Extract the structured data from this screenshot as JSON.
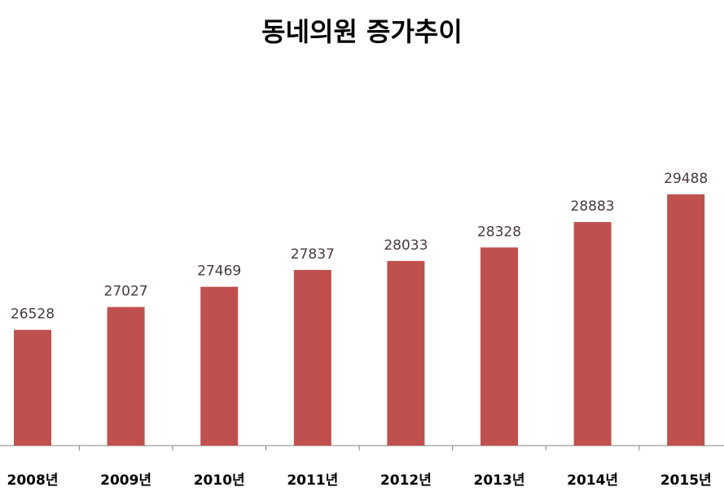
{
  "chart_data": {
    "type": "bar",
    "title": "동네의원 증가추이",
    "categories": [
      "2008년",
      "2009년",
      "2010년",
      "2011년",
      "2012년",
      "2013년",
      "2014년",
      "2015년"
    ],
    "values": [
      26528,
      27027,
      27469,
      27837,
      28033,
      28328,
      28883,
      29488
    ],
    "data_labels": [
      "26528",
      "27027",
      "27469",
      "27837",
      "28033",
      "28328",
      "28883",
      "29488"
    ],
    "bar_color": "#c0504d",
    "grid": false,
    "legend": "none"
  }
}
